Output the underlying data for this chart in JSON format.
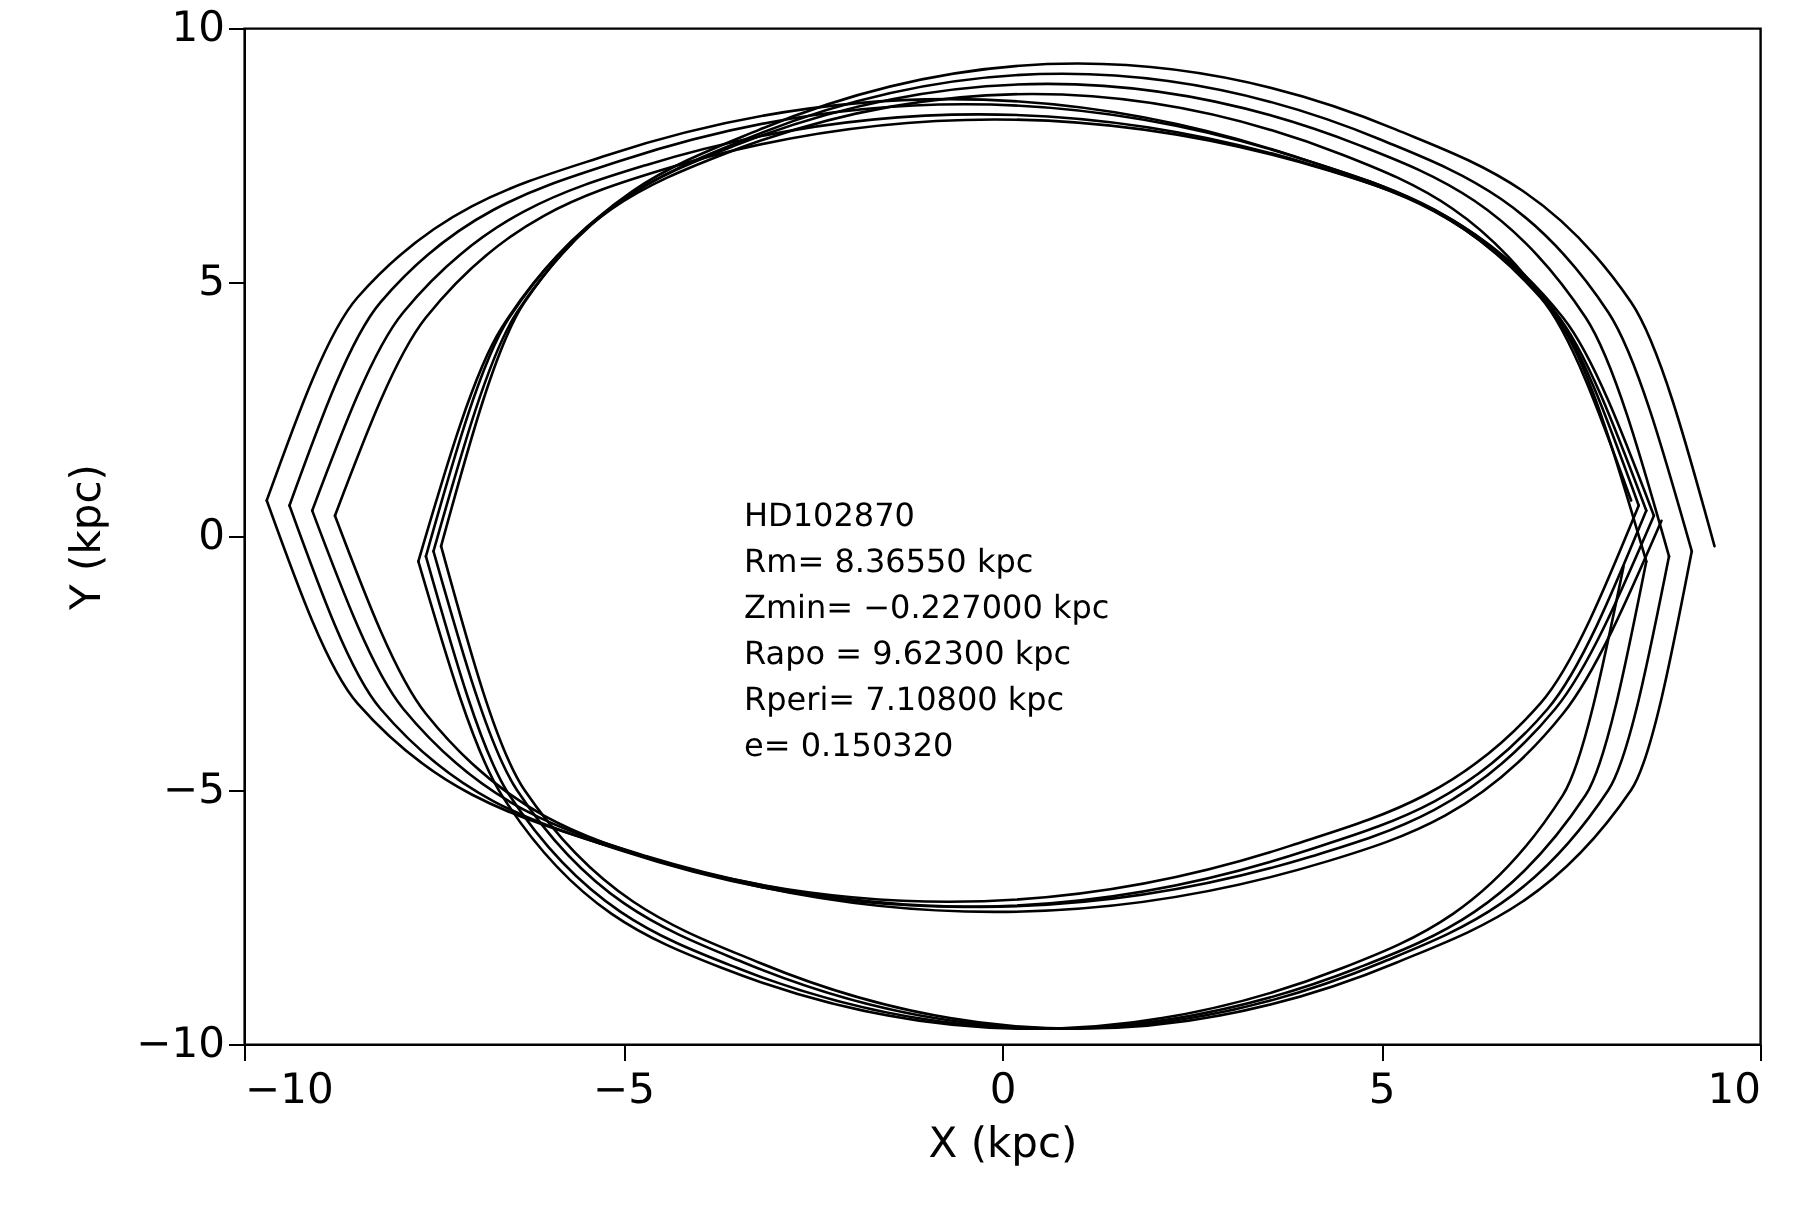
{
  "chart_data": {
    "type": "line",
    "xlabel": "X (kpc)",
    "ylabel": "Y (kpc)",
    "xlim": [
      -10,
      10
    ],
    "ylim": [
      -10,
      10
    ],
    "xticks": [
      -10,
      -5,
      0,
      5,
      10
    ],
    "yticks": [
      -10,
      -5,
      0,
      5,
      10
    ],
    "grid": false,
    "annotations": [
      "HD102870",
      "Rm= 8.36550 kpc",
      "Zmin= −0.227000 kpc",
      "Rapo = 9.62300 kpc",
      "Rperi= 7.10800 kpc",
      "e= 0.150320"
    ],
    "series": [
      {
        "color": "#000000",
        "x": [
          -9.7,
          -8.5,
          -5.2,
          -0.7,
          3.8,
          7.1,
          8.3
        ],
        "values": [
          0.7,
          4.7,
          7.5,
          8.6,
          7.5,
          4.7,
          0.7
        ]
      },
      {
        "color": "#000000",
        "x": [
          -9.7,
          -8.5,
          -5.2,
          -0.7,
          3.8,
          7.1,
          8.4
        ],
        "values": [
          0.7,
          -3.3,
          -6.1,
          -7.2,
          -6.1,
          -3.3,
          0.6
        ]
      },
      {
        "color": "#000000",
        "x": [
          -9.4,
          -8.2,
          -5.0,
          -0.5,
          4.0,
          7.2,
          8.4
        ],
        "values": [
          0.6,
          4.6,
          7.4,
          8.5,
          7.4,
          4.6,
          0.6
        ]
      },
      {
        "color": "#000000",
        "x": [
          -9.4,
          -8.2,
          -5.0,
          -0.5,
          4.0,
          7.2,
          8.5
        ],
        "values": [
          0.6,
          -3.4,
          -6.2,
          -7.3,
          -6.2,
          -3.4,
          0.5
        ]
      },
      {
        "color": "#000000",
        "x": [
          -9.1,
          -7.9,
          -4.7,
          -0.3,
          4.1,
          7.3,
          8.5
        ],
        "values": [
          0.5,
          4.4,
          7.3,
          8.3,
          7.3,
          4.4,
          0.5
        ]
      },
      {
        "color": "#000000",
        "x": [
          -9.1,
          -7.9,
          -4.7,
          -0.3,
          4.1,
          7.3,
          8.6
        ],
        "values": [
          0.5,
          -3.4,
          -6.3,
          -7.3,
          -6.3,
          -3.4,
          0.4
        ]
      },
      {
        "color": "#000000",
        "x": [
          -8.8,
          -7.6,
          -4.5,
          -0.1,
          4.3,
          7.4,
          8.6
        ],
        "values": [
          0.4,
          4.3,
          7.2,
          8.2,
          7.2,
          4.3,
          0.4
        ]
      },
      {
        "color": "#000000",
        "x": [
          -8.8,
          -7.6,
          -4.5,
          -0.1,
          4.3,
          7.4,
          8.7
        ],
        "values": [
          0.4,
          -3.5,
          -6.4,
          -7.4,
          -6.4,
          -3.5,
          0.3
        ]
      },
      {
        "color": "#000000",
        "x": [
          -7.4,
          -6.3,
          -3.2,
          1.0,
          5.2,
          8.3,
          9.4
        ],
        "values": [
          -0.2,
          4.6,
          8.0,
          9.3,
          8.0,
          4.6,
          -0.2
        ]
      },
      {
        "color": "#000000",
        "x": [
          -7.4,
          -6.3,
          -3.2,
          1.0,
          5.2,
          8.3,
          9.1
        ],
        "values": [
          -0.2,
          -5.0,
          -8.4,
          -9.7,
          -8.4,
          -5.0,
          -0.3
        ]
      },
      {
        "color": "#000000",
        "x": [
          -7.5,
          -6.4,
          -3.4,
          0.8,
          5.0,
          8.0,
          9.1
        ],
        "values": [
          -0.3,
          4.4,
          7.8,
          9.1,
          7.8,
          4.4,
          -0.3
        ]
      },
      {
        "color": "#000000",
        "x": [
          -7.5,
          -6.4,
          -3.4,
          0.8,
          5.0,
          8.0,
          8.8
        ],
        "values": [
          -0.3,
          -5.0,
          -8.4,
          -9.7,
          -8.4,
          -5.0,
          -0.4
        ]
      },
      {
        "color": "#000000",
        "x": [
          -7.6,
          -6.5,
          -3.5,
          0.6,
          4.7,
          7.7,
          8.8
        ],
        "values": [
          -0.4,
          4.3,
          7.7,
          8.9,
          7.7,
          4.3,
          -0.4
        ]
      },
      {
        "color": "#000000",
        "x": [
          -7.6,
          -6.5,
          -3.5,
          0.6,
          4.7,
          7.7,
          8.5
        ],
        "values": [
          -0.4,
          -5.1,
          -8.5,
          -9.7,
          -8.5,
          -5.1,
          -0.5
        ]
      },
      {
        "color": "#000000",
        "x": [
          -7.7,
          -6.6,
          -3.7,
          0.4,
          4.5,
          7.4,
          8.5
        ],
        "values": [
          -0.5,
          4.1,
          7.5,
          8.7,
          7.5,
          4.1,
          -0.5
        ]
      },
      {
        "color": "#000000",
        "x": [
          -7.7,
          -6.6,
          -3.7,
          0.4,
          4.5,
          7.4,
          8.2
        ],
        "values": [
          -0.5,
          -5.1,
          -8.5,
          -9.7,
          -8.5,
          -5.1,
          -0.6
        ]
      }
    ]
  }
}
